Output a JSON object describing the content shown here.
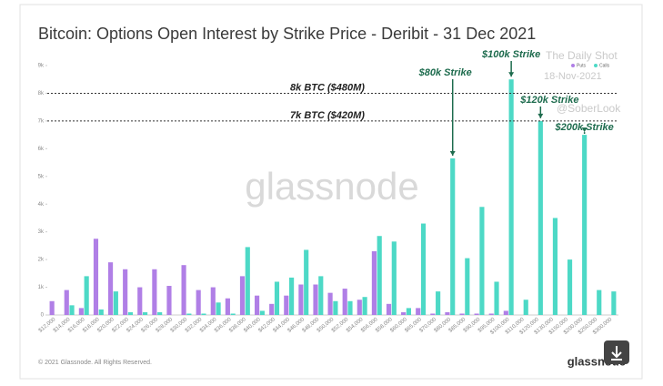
{
  "chart_data": {
    "type": "bar",
    "title": "Bitcoin: Options Open Interest by Strike Price - Deribit - 31 Dec 2021",
    "categories": [
      "$12,000",
      "$14,000",
      "$16,000",
      "$18,000",
      "$20,000",
      "$22,000",
      "$24,000",
      "$26,000",
      "$28,000",
      "$30,000",
      "$32,000",
      "$34,000",
      "$36,000",
      "$38,000",
      "$40,000",
      "$42,000",
      "$44,000",
      "$46,000",
      "$48,000",
      "$50,000",
      "$52,000",
      "$54,000",
      "$56,000",
      "$58,000",
      "$60,000",
      "$65,000",
      "$70,000",
      "$80,000",
      "$85,000",
      "$90,000",
      "$95,000",
      "$100,000",
      "$110,000",
      "$120,000",
      "$130,000",
      "$150,000",
      "$200,000",
      "$250,000",
      "$300,000"
    ],
    "series": [
      {
        "name": "Puts",
        "color": "#b07fe6",
        "values": [
          500,
          900,
          250,
          2750,
          1900,
          1650,
          1000,
          1650,
          1050,
          1800,
          900,
          1000,
          600,
          1400,
          700,
          400,
          700,
          1100,
          1100,
          800,
          950,
          550,
          2300,
          400,
          100,
          250,
          50,
          100,
          50,
          50,
          50,
          150,
          0,
          0,
          0,
          0,
          0,
          0,
          0
        ]
      },
      {
        "name": "Calls",
        "color": "#4dd9c6",
        "values": [
          0,
          350,
          1400,
          200,
          850,
          100,
          100,
          100,
          0,
          50,
          50,
          450,
          50,
          2450,
          150,
          1200,
          1350,
          2350,
          1400,
          500,
          500,
          650,
          2850,
          2650,
          250,
          3300,
          850,
          5650,
          2050,
          3900,
          1200,
          8500,
          550,
          7000,
          3500,
          2000,
          6500,
          900,
          850
        ]
      }
    ],
    "ylim": [
      0,
      9000
    ],
    "yticks": [
      0,
      {
        "value": 1000,
        "label": "1k"
      },
      {
        "value": 2000,
        "label": "2k"
      },
      {
        "value": 3000,
        "label": "3k"
      },
      {
        "value": 4000,
        "label": "4k"
      },
      {
        "value": 5000,
        "label": "5k"
      },
      {
        "value": 6000,
        "label": "6k"
      },
      {
        "value": 7000,
        "label": "7k"
      },
      {
        "value": 8000,
        "label": "8k"
      },
      {
        "value": 9000,
        "label": "9k"
      }
    ],
    "grid": false,
    "legend": "top-right",
    "reference_lines": [
      {
        "value": 8000,
        "label": "8k BTC ($480M)"
      },
      {
        "value": 7000,
        "label": "7k BTC ($420M)"
      }
    ],
    "callouts": [
      {
        "label": "$80k Strike",
        "category": "$80,000"
      },
      {
        "label": "$100k Strike",
        "category": "$100,000"
      },
      {
        "label": "$120k Strike",
        "category": "$120,000"
      },
      {
        "label": "$200k Strike",
        "category": "$200,000"
      }
    ],
    "watermark": "glassnode",
    "overlay": [
      "The Daily Shot",
      "18-Nov-2021",
      "@SoberLook"
    ],
    "footer": "© 2021 Glassnode. All Rights Reserved.",
    "logo": "glassnode"
  }
}
